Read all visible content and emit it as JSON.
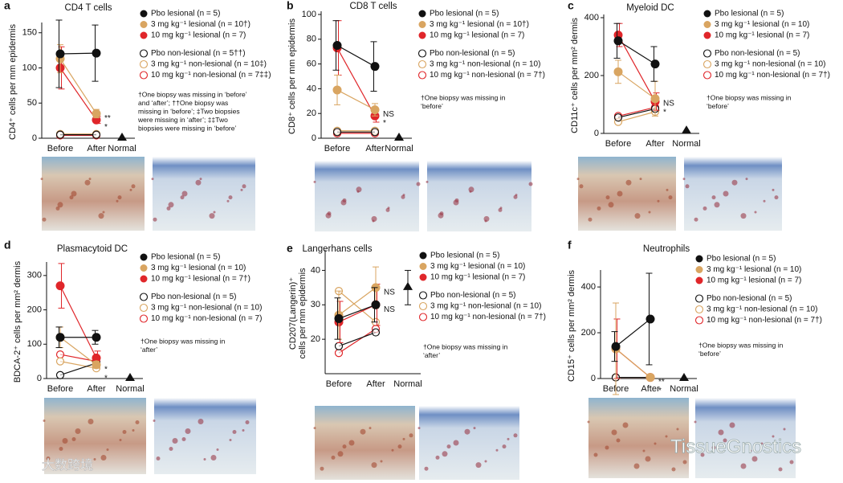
{
  "chart_data": [
    {
      "type": "line",
      "label": "a",
      "title": "CD4 T cells",
      "ylabel": "CD4⁺ cells per mm epidermis",
      "categories": [
        "Before",
        "After",
        "Normal"
      ],
      "ylim": [
        0,
        160
      ],
      "yticks": [
        0,
        50,
        100,
        150
      ],
      "series": [
        {
          "name": "Pbo lesional (n = 5)",
          "color": "#111111",
          "marker": "filled",
          "values": [
            120,
            121,
            null
          ],
          "errors": [
            48,
            40,
            null
          ]
        },
        {
          "name": "3 mg kg⁻¹ lesional (n = 10†)",
          "color": "#d9a561",
          "marker": "filled",
          "values": [
            113,
            35,
            null
          ],
          "errors": [
            20,
            6,
            null
          ],
          "annotation": "**"
        },
        {
          "name": "10 mg kg⁻¹ lesional (n = 7)",
          "color": "#e0262a",
          "marker": "filled",
          "values": [
            100,
            26,
            null
          ],
          "errors": [
            30,
            5,
            null
          ],
          "annotation": "*"
        },
        {
          "name": "Pbo non-lesional (n = 5††)",
          "color": "#111111",
          "marker": "open",
          "values": [
            5,
            5,
            null
          ]
        },
        {
          "name": "3 mg kg⁻¹ non-lesional (n = 10‡)",
          "color": "#d9a561",
          "marker": "open",
          "values": [
            6,
            6,
            null
          ]
        },
        {
          "name": "10 mg kg⁻¹ non-lesional (n = 7‡‡)",
          "color": "#e0262a",
          "marker": "open",
          "values": [
            4,
            4,
            null
          ]
        }
      ],
      "normal": {
        "value": 0
      },
      "footnote": [
        "†One biopsy was missing in ‘before’",
        "and ‘after’; ††One biopsy was",
        "missing in ‘before’; ‡Two biopsies",
        "were missing in ‘after’; ‡‡Two",
        "biopsies were missing in ‘before’"
      ]
    },
    {
      "type": "line",
      "label": "b",
      "title": "CD8 T cells",
      "ylabel": "CD8⁺ cells per mm epidermis",
      "categories": [
        "Before",
        "After",
        "Normal"
      ],
      "ylim": [
        0,
        100
      ],
      "yticks": [
        0,
        20,
        40,
        60,
        80,
        100
      ],
      "series": [
        {
          "name": "Pbo lesional (n = 5)",
          "color": "#111111",
          "marker": "filled",
          "values": [
            75,
            58,
            null
          ],
          "errors": [
            20,
            20,
            null
          ]
        },
        {
          "name": "3 mg kg⁻¹ lesional (n = 10†)",
          "color": "#d9a561",
          "marker": "filled",
          "values": [
            39,
            23,
            null
          ],
          "errors": [
            12,
            5,
            null
          ],
          "annotation": "NS"
        },
        {
          "name": "10 mg kg⁻¹ lesional (n = 7)",
          "color": "#e0262a",
          "marker": "filled",
          "values": [
            73,
            18,
            null
          ],
          "errors": [
            22,
            5,
            null
          ],
          "annotation": "*"
        },
        {
          "name": "Pbo non-lesional (n = 5)",
          "color": "#111111",
          "marker": "open",
          "values": [
            5,
            5,
            null
          ]
        },
        {
          "name": "3 mg kg⁻¹ non-lesional (n = 10)",
          "color": "#d9a561",
          "marker": "open",
          "values": [
            6,
            6,
            null
          ]
        },
        {
          "name": "10 mg kg⁻¹ non-lesional (n = 7†)",
          "color": "#e0262a",
          "marker": "open",
          "values": [
            4,
            4,
            null
          ]
        }
      ],
      "normal": {
        "value": 0
      },
      "footnote": [
        "†One biopsy was missing in",
        "‘before’"
      ]
    },
    {
      "type": "line",
      "label": "c",
      "title": "Myeloid DC",
      "ylabel": "CD11c⁺ cells per mm² dermis",
      "categories": [
        "Before",
        "After",
        "Normal"
      ],
      "ylim": [
        0,
        400
      ],
      "yticks": [
        0,
        200,
        400
      ],
      "series": [
        {
          "name": "Pbo lesional (n = 5)",
          "color": "#111111",
          "marker": "filled",
          "values": [
            320,
            240,
            null
          ],
          "errors": [
            60,
            60,
            null
          ]
        },
        {
          "name": "3 mg kg⁻¹ lesional (n = 10)",
          "color": "#d9a561",
          "marker": "filled",
          "values": [
            213,
            120,
            null
          ],
          "errors": [
            40,
            60,
            null
          ],
          "annotation": "NS"
        },
        {
          "name": "10 mg kg⁻¹ lesional (n = 7)",
          "color": "#e0262a",
          "marker": "filled",
          "values": [
            340,
            110,
            null
          ],
          "errors": [
            40,
            30,
            null
          ],
          "annotation": "*"
        },
        {
          "name": "Pbo non-lesional (n = 5)",
          "color": "#111111",
          "marker": "open",
          "values": [
            55,
            85,
            null
          ]
        },
        {
          "name": "3 mg kg⁻¹ non-lesional (n = 10)",
          "color": "#d9a561",
          "marker": "open",
          "values": [
            40,
            75,
            null
          ]
        },
        {
          "name": "10 mg kg⁻¹ non-lesional (n = 7†)",
          "color": "#e0262a",
          "marker": "open",
          "values": [
            60,
            90,
            null
          ]
        }
      ],
      "normal": {
        "value": 8
      },
      "footnote": [
        "†One biopsy was missing in",
        "‘before’"
      ]
    },
    {
      "type": "line",
      "label": "d",
      "title": "Plasmacytoid DC",
      "ylabel": "BDCA-2⁺ cells per mm² dermis",
      "categories": [
        "Before",
        "After",
        "Normal"
      ],
      "ylim": [
        0,
        330
      ],
      "yticks": [
        0,
        100,
        200,
        300
      ],
      "series": [
        {
          "name": "Pbo lesional (n = 5)",
          "color": "#111111",
          "marker": "filled",
          "values": [
            120,
            120,
            null
          ],
          "errors": [
            30,
            20,
            null
          ]
        },
        {
          "name": "3 mg kg⁻¹ lesional (n = 10)",
          "color": "#d9a561",
          "marker": "filled",
          "values": [
            120,
            40,
            null
          ],
          "errors": [
            30,
            10,
            null
          ],
          "annotation": "*"
        },
        {
          "name": "10 mg kg⁻¹ lesional (n = 7†)",
          "color": "#e0262a",
          "marker": "filled",
          "values": [
            270,
            60,
            null
          ],
          "errors": [
            65,
            20,
            null
          ],
          "annotation": "*"
        },
        {
          "name": "Pbo non-lesional (n = 5)",
          "color": "#111111",
          "marker": "open",
          "values": [
            10,
            45,
            null
          ]
        },
        {
          "name": "3 mg kg⁻¹ non-lesional (n = 10)",
          "color": "#d9a561",
          "marker": "open",
          "values": [
            50,
            30,
            null
          ]
        },
        {
          "name": "10 mg kg⁻¹ non-lesional (n = 7)",
          "color": "#e0262a",
          "marker": "open",
          "values": [
            70,
            50,
            null
          ]
        }
      ],
      "normal": {
        "value": 0
      },
      "footnote": [
        "†One biopsy was missing in",
        "‘after’"
      ]
    },
    {
      "type": "line",
      "label": "e",
      "title": "Langerhans cells",
      "ylabel": [
        "CD207(Langerin)⁺",
        "cells per mm epidermis"
      ],
      "categories": [
        "Before",
        "After",
        "Normal"
      ],
      "ylim": [
        10,
        45
      ],
      "yticks": [
        20,
        30,
        40
      ],
      "series": [
        {
          "name": "Pbo lesional (n = 5)",
          "color": "#111111",
          "marker": "filled",
          "values": [
            26,
            30,
            null
          ],
          "errors": [
            6,
            5,
            null
          ]
        },
        {
          "name": "3 mg kg⁻¹ lesional (n = 10)",
          "color": "#d9a561",
          "marker": "filled",
          "values": [
            27,
            35,
            null
          ],
          "errors": [
            7,
            6,
            null
          ],
          "annotation": "NS"
        },
        {
          "name": "10 mg kg⁻¹ lesional (n = 7)",
          "color": "#e0262a",
          "marker": "filled",
          "values": [
            25,
            30,
            null
          ],
          "errors": [
            6,
            6,
            null
          ],
          "annotation": "NS"
        },
        {
          "name": "Pbo non-lesional (n = 5)",
          "color": "#111111",
          "marker": "open",
          "values": [
            18,
            22,
            null
          ]
        },
        {
          "name": "3 mg kg⁻¹ non-lesional (n = 10)",
          "color": "#d9a561",
          "marker": "open",
          "values": [
            34,
            25,
            null
          ]
        },
        {
          "name": "10 mg kg⁻¹ non-lesional (n = 7†)",
          "color": "#e0262a",
          "marker": "open",
          "values": [
            16,
            23,
            null
          ]
        }
      ],
      "normal": {
        "value": 35,
        "error": 5
      },
      "footnote": [
        "†One biopsy was missing in",
        "‘after’"
      ]
    },
    {
      "type": "line",
      "label": "f",
      "title": "Neutrophils",
      "ylabel": "CD15⁺ cells per mm² dermis",
      "categories": [
        "Before",
        "After",
        "Normal"
      ],
      "ylim": [
        0,
        460
      ],
      "yticks": [
        0,
        200,
        400
      ],
      "series": [
        {
          "name": "Pbo lesional (n = 5)",
          "color": "#111111",
          "marker": "filled",
          "values": [
            140,
            260,
            null
          ],
          "errors": [
            65,
            200,
            null
          ]
        },
        {
          "name": "3 mg kg⁻¹ lesional (n = 10)",
          "color": "#d9a561",
          "marker": "filled",
          "values": [
            130,
            5,
            null
          ],
          "errors": [
            200,
            3,
            null
          ],
          "annotation": "**"
        },
        {
          "name": "10 mg kg⁻¹ lesional (n = 7)",
          "color": "#e0262a",
          "marker": "filled",
          "values": [
            130,
            5,
            null
          ],
          "errors": [
            130,
            3,
            null
          ],
          "annotation": "*"
        },
        {
          "name": "Pbo non-lesional (n = 5)",
          "color": "#111111",
          "marker": "open",
          "values": [
            5,
            5,
            null
          ]
        },
        {
          "name": "3 mg kg⁻¹ non-lesional (n = 10)",
          "color": "#d9a561",
          "marker": "open",
          "values": [
            5,
            5,
            null
          ]
        },
        {
          "name": "10 mg kg⁻¹ non-lesional (n = 7†)",
          "color": "#e0262a",
          "marker": "open",
          "values": [
            5,
            5,
            null
          ]
        }
      ],
      "normal": {
        "value": 0
      },
      "footnote": [
        "†One biopsy was missing in",
        "‘before’"
      ]
    }
  ],
  "watermarks": [
    "TissueGnostics",
    "大数跨境"
  ]
}
